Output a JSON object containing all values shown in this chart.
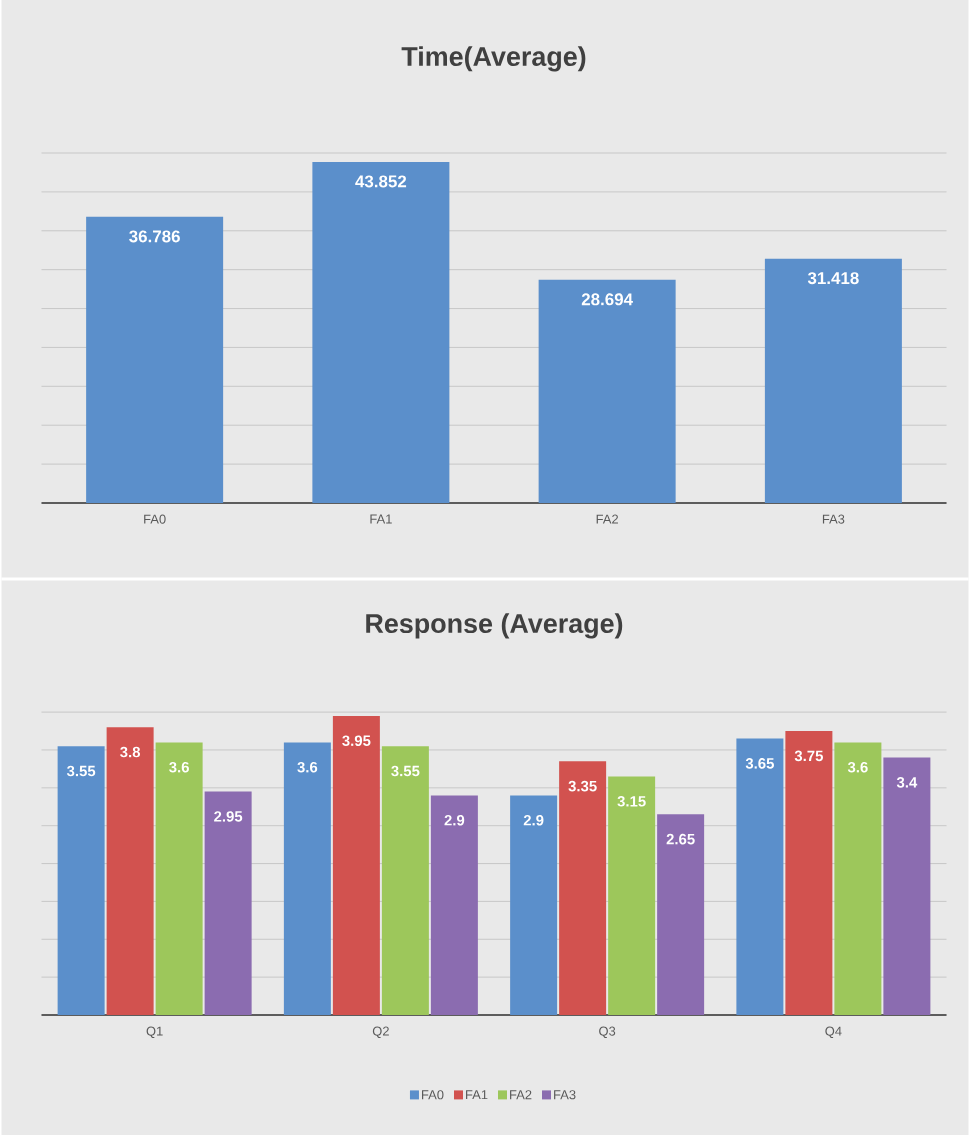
{
  "chart_data": [
    {
      "type": "bar",
      "title": "Time(Average)",
      "categories": [
        "FA0",
        "FA1",
        "FA2",
        "FA3"
      ],
      "values": [
        36.786,
        43.852,
        28.694,
        31.418
      ],
      "color": "#5b8fcb",
      "grid": "y",
      "tick_labels": "x",
      "data_labels": true
    },
    {
      "type": "bar",
      "title": "Response (Average)",
      "categories": [
        "Q1",
        "Q2",
        "Q3",
        "Q4"
      ],
      "series": [
        {
          "name": "FA0",
          "color": "#5b8fcb",
          "values": [
            3.55,
            3.6,
            2.9,
            3.65
          ]
        },
        {
          "name": "FA1",
          "color": "#d2524f",
          "values": [
            3.8,
            3.95,
            3.35,
            3.75
          ]
        },
        {
          "name": "FA2",
          "color": "#9dc75b",
          "values": [
            3.6,
            3.55,
            3.15,
            3.6
          ]
        },
        {
          "name": "FA3",
          "color": "#8b6cb0",
          "values": [
            2.95,
            2.9,
            2.65,
            3.4
          ]
        }
      ],
      "grid": "y",
      "tick_labels": "x",
      "legend": "bottom",
      "data_labels": true
    }
  ]
}
